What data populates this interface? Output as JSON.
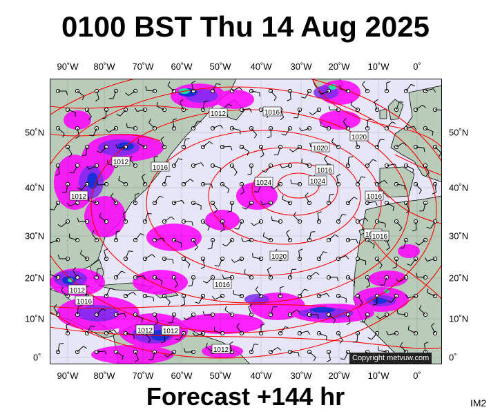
{
  "title": "0100 BST Thu 14 Aug 2025",
  "footer": "Forecast +144 hr",
  "corner_label": "IM2",
  "copyright": "Copyright metvuw.com",
  "longitude_labels": [
    "90˚W",
    "80˚W",
    "70˚W",
    "60˚W",
    "50˚W",
    "40˚W",
    "30˚W",
    "20˚W",
    "10˚W",
    "0˚"
  ],
  "latitude_labels": [
    "50˚N",
    "40˚N",
    "30˚N",
    "20˚N",
    "10˚N",
    "0˚"
  ],
  "isobar_labels": [
    "1012",
    "1016",
    "1020",
    "1024",
    "1024",
    "1020",
    "1016",
    "1012",
    "1016",
    "1012",
    "1016",
    "1020",
    "1012",
    "1016",
    "1012",
    "1012",
    "1016",
    "1020",
    "1016",
    "1012"
  ],
  "colors": {
    "ocean": "#e6e6f8",
    "land": "#b9cbb9",
    "isobar": "#ff0000",
    "precip_light": "#ff00ff",
    "precip_mid": "#7a2bf0",
    "precip_heavy": "#1a30d8",
    "precip_extreme": "#20e0a0",
    "coastline": "#000000"
  }
}
